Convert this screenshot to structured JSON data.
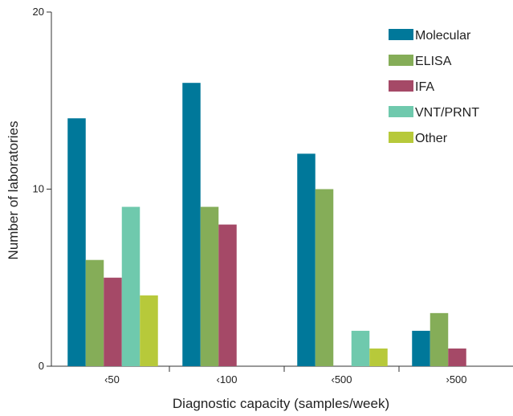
{
  "chart_data": {
    "type": "bar",
    "title": "",
    "xlabel": "Diagnostic capacity (samples/week)",
    "ylabel": "Number of laboratories",
    "ylim": [
      0,
      20
    ],
    "yticks": [
      "0",
      "10",
      "20"
    ],
    "categories": [
      "‹50",
      "‹100",
      "‹500",
      "›500"
    ],
    "series": [
      {
        "name": "Molecular",
        "color": "#00789a",
        "values": [
          14,
          16,
          12,
          2
        ]
      },
      {
        "name": "ELISA",
        "color": "#85ad58",
        "values": [
          6,
          9,
          10,
          3
        ]
      },
      {
        "name": "IFA",
        "color": "#a54967",
        "values": [
          5,
          8,
          0,
          1
        ]
      },
      {
        "name": "VNT/PRNT",
        "color": "#6fc9ad",
        "values": [
          9,
          0,
          2,
          0
        ]
      },
      {
        "name": "Other",
        "color": "#b7c93a",
        "values": [
          4,
          0,
          1,
          0
        ]
      }
    ],
    "legend_position": "top-right",
    "grid": false
  }
}
